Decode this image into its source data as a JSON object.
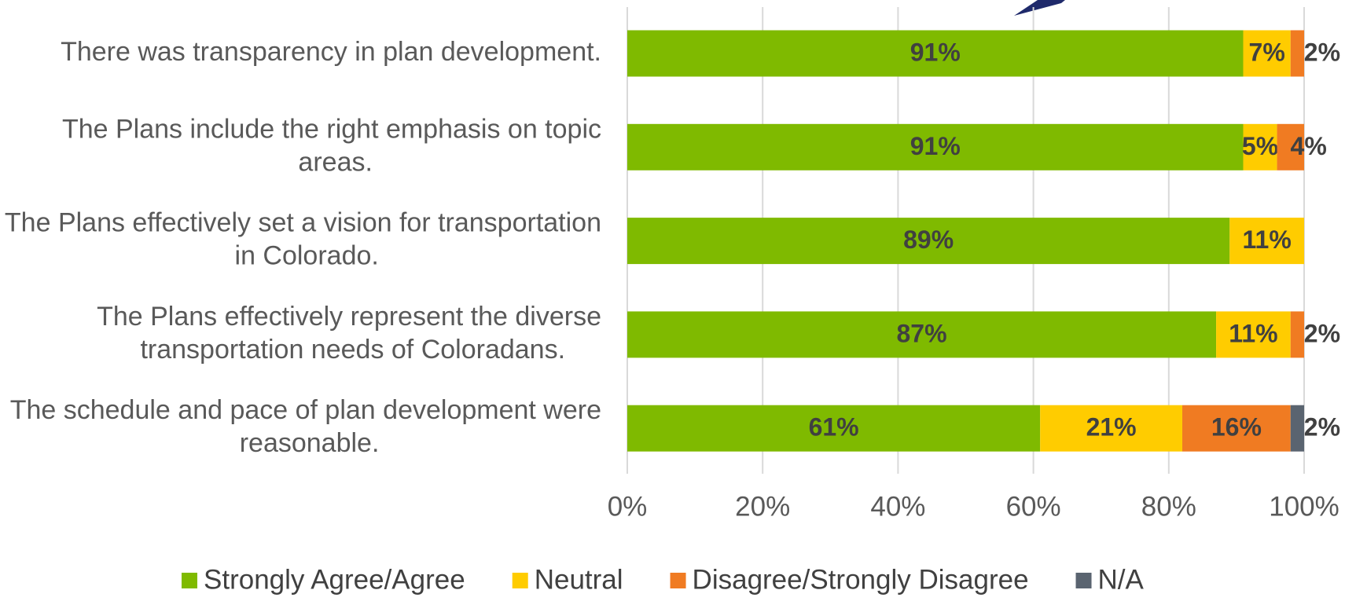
{
  "chart_data": {
    "type": "stacked_bar_horizontal",
    "categories": [
      "There was transparency in plan development.",
      "The Plans include the right emphasis on topic areas.",
      "The Plans effectively set a vision for transportation in Colorado.",
      "The Plans effectively represent the diverse transportation needs of Coloradans.",
      "The schedule and pace of plan development were reasonable."
    ],
    "series": [
      {
        "name": "Strongly Agree/Agree",
        "color": "#7fba00",
        "values": [
          91,
          91,
          89,
          87,
          61
        ],
        "value_labels": [
          "91%",
          "91%",
          "89%",
          "87%",
          "61%"
        ]
      },
      {
        "name": "Neutral",
        "color": "#ffcc00",
        "values": [
          7,
          5,
          11,
          11,
          21
        ],
        "value_labels": [
          "7%",
          "5%",
          "11%",
          "11%",
          "21%"
        ]
      },
      {
        "name": "Disagree/Strongly Disagree",
        "color": "#f07b22",
        "values": [
          2,
          4,
          null,
          2,
          16
        ],
        "value_labels": [
          "2%",
          "4%",
          null,
          "2%",
          "16%"
        ]
      },
      {
        "name": "N/A",
        "color": "#5a6470",
        "values": [
          null,
          null,
          null,
          null,
          2
        ],
        "value_labels": [
          null,
          null,
          null,
          null,
          "2%"
        ]
      }
    ],
    "xlim": [
      0,
      100
    ],
    "xticks": [
      {
        "value": 0,
        "label": "0%"
      },
      {
        "value": 20,
        "label": "20%"
      },
      {
        "value": 40,
        "label": "40%"
      },
      {
        "value": 60,
        "label": "60%"
      },
      {
        "value": 80,
        "label": "80%"
      },
      {
        "value": 100,
        "label": "100%"
      }
    ],
    "grid": true,
    "legend": "bottom"
  }
}
